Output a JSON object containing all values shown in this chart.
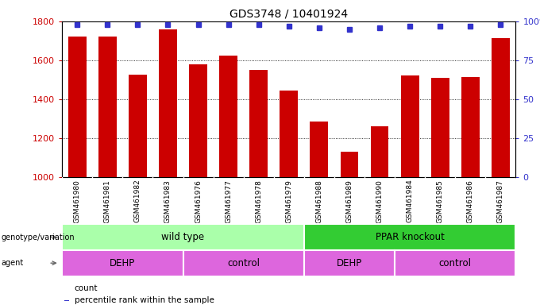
{
  "title": "GDS3748 / 10401924",
  "samples": [
    "GSM461980",
    "GSM461981",
    "GSM461982",
    "GSM461983",
    "GSM461976",
    "GSM461977",
    "GSM461978",
    "GSM461979",
    "GSM461988",
    "GSM461989",
    "GSM461990",
    "GSM461984",
    "GSM461985",
    "GSM461986",
    "GSM461987"
  ],
  "bar_values": [
    1720,
    1720,
    1525,
    1760,
    1580,
    1625,
    1550,
    1445,
    1285,
    1130,
    1260,
    1520,
    1510,
    1515,
    1715
  ],
  "percentile_values": [
    98,
    98,
    98,
    98,
    98,
    98,
    98,
    97,
    96,
    95,
    96,
    97,
    97,
    97,
    98
  ],
  "bar_color": "#cc0000",
  "dot_color": "#3333cc",
  "ylim_left": [
    1000,
    1800
  ],
  "ylim_right": [
    0,
    100
  ],
  "yticks_left": [
    1000,
    1200,
    1400,
    1600,
    1800
  ],
  "yticks_right": [
    0,
    25,
    50,
    75,
    100
  ],
  "tick_label_color_left": "#cc0000",
  "tick_label_color_right": "#3333cc",
  "genotype_label": "genotype/variation",
  "agent_label": "agent",
  "genotype_groups": [
    {
      "label": "wild type",
      "start": 0,
      "end": 7,
      "color": "#aaffaa"
    },
    {
      "label": "PPAR knockout",
      "start": 8,
      "end": 14,
      "color": "#33cc33"
    }
  ],
  "agent_groups": [
    {
      "label": "DEHP",
      "start": 0,
      "end": 3,
      "color": "#dd66dd"
    },
    {
      "label": "control",
      "start": 4,
      "end": 7,
      "color": "#dd66dd"
    },
    {
      "label": "DEHP",
      "start": 8,
      "end": 10,
      "color": "#dd66dd"
    },
    {
      "label": "control",
      "start": 11,
      "end": 14,
      "color": "#dd66dd"
    }
  ],
  "legend_count_color": "#cc0000",
  "legend_dot_color": "#3333cc"
}
